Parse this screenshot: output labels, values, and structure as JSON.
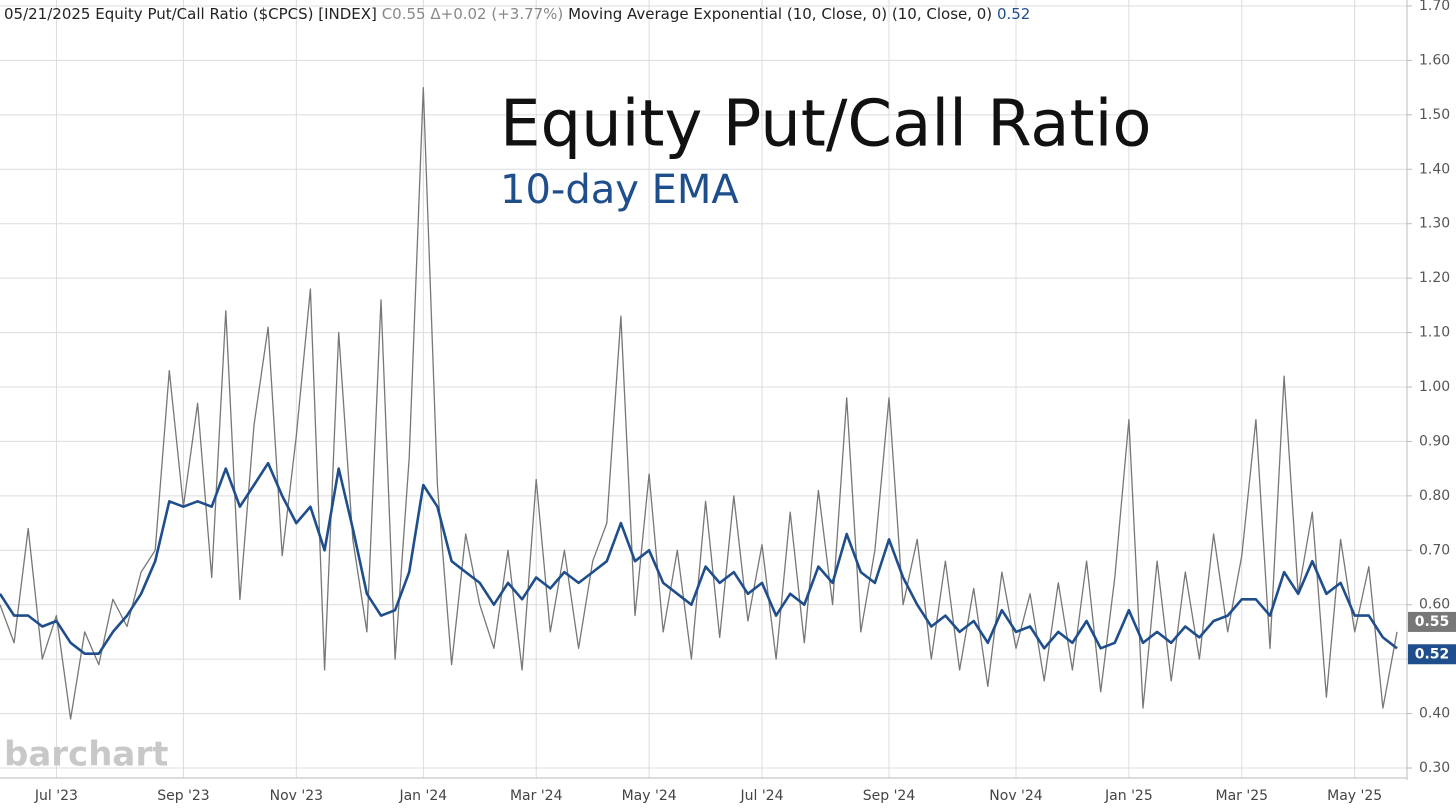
{
  "chart_data": {
    "type": "line",
    "title": "Equity Put/Call Ratio",
    "subtitle": "10-day EMA",
    "header": {
      "date": "05/21/2025",
      "close_prefix": "C",
      "change": "Δ+0.02 (+3.77%)"
    },
    "watermark": "barchart",
    "categories": [
      null,
      null,
      null,
      null,
      "Jul '23",
      null,
      null,
      null,
      null,
      null,
      null,
      null,
      null,
      "Sep '23",
      null,
      null,
      null,
      null,
      null,
      null,
      null,
      "Nov '23",
      null,
      null,
      null,
      null,
      null,
      null,
      null,
      null,
      "Jan '24",
      null,
      null,
      null,
      null,
      null,
      null,
      null,
      "Mar '24",
      null,
      null,
      null,
      null,
      null,
      null,
      null,
      "May '24",
      null,
      null,
      null,
      null,
      null,
      null,
      null,
      "Jul '24",
      null,
      null,
      null,
      null,
      null,
      null,
      null,
      null,
      "Sep '24",
      null,
      null,
      null,
      null,
      null,
      null,
      null,
      null,
      "Nov '24",
      null,
      null,
      null,
      null,
      null,
      null,
      null,
      "Jan '25",
      null,
      null,
      null,
      null,
      null,
      null,
      null,
      "Mar '25",
      null,
      null,
      null,
      null,
      null,
      null,
      null,
      "May '25",
      null,
      null,
      null
    ],
    "series": [
      {
        "name": "Equity Put/Call Ratio ($CPCS) [INDEX]",
        "color": "#777777",
        "values": [
          0.6,
          0.53,
          0.74,
          0.5,
          0.58,
          0.39,
          0.55,
          0.49,
          0.61,
          0.56,
          0.66,
          0.7,
          1.03,
          0.78,
          0.97,
          0.65,
          1.14,
          0.61,
          0.93,
          1.11,
          0.69,
          0.91,
          1.18,
          0.48,
          1.1,
          0.72,
          0.55,
          1.16,
          0.5,
          0.87,
          1.55,
          0.82,
          0.49,
          0.73,
          0.6,
          0.52,
          0.7,
          0.48,
          0.83,
          0.55,
          0.7,
          0.52,
          0.68,
          0.75,
          1.13,
          0.58,
          0.84,
          0.55,
          0.7,
          0.5,
          0.79,
          0.54,
          0.8,
          0.57,
          0.71,
          0.5,
          0.77,
          0.53,
          0.81,
          0.6,
          0.98,
          0.55,
          0.7,
          0.98,
          0.6,
          0.72,
          0.5,
          0.68,
          0.48,
          0.63,
          0.45,
          0.66,
          0.52,
          0.62,
          0.46,
          0.64,
          0.48,
          0.68,
          0.44,
          0.65,
          0.94,
          0.41,
          0.68,
          0.46,
          0.66,
          0.5,
          0.73,
          0.55,
          0.69,
          0.94,
          0.52,
          1.02,
          0.62,
          0.77,
          0.43,
          0.72,
          0.55,
          0.67,
          0.41,
          0.55
        ]
      },
      {
        "name": "Moving Average Exponential (10, Close, 0)  (10, Close, 0)",
        "color": "#1f4e8c",
        "values": [
          0.62,
          0.58,
          0.58,
          0.56,
          0.57,
          0.53,
          0.51,
          0.51,
          0.55,
          0.58,
          0.62,
          0.68,
          0.79,
          0.78,
          0.79,
          0.78,
          0.85,
          0.78,
          0.82,
          0.86,
          0.8,
          0.75,
          0.78,
          0.7,
          0.85,
          0.74,
          0.62,
          0.58,
          0.59,
          0.66,
          0.82,
          0.78,
          0.68,
          0.66,
          0.64,
          0.6,
          0.64,
          0.61,
          0.65,
          0.63,
          0.66,
          0.64,
          0.66,
          0.68,
          0.75,
          0.68,
          0.7,
          0.64,
          0.62,
          0.6,
          0.67,
          0.64,
          0.66,
          0.62,
          0.64,
          0.58,
          0.62,
          0.6,
          0.67,
          0.64,
          0.73,
          0.66,
          0.64,
          0.72,
          0.65,
          0.6,
          0.56,
          0.58,
          0.55,
          0.57,
          0.53,
          0.59,
          0.55,
          0.56,
          0.52,
          0.55,
          0.53,
          0.57,
          0.52,
          0.53,
          0.59,
          0.53,
          0.55,
          0.53,
          0.56,
          0.54,
          0.57,
          0.58,
          0.61,
          0.61,
          0.58,
          0.66,
          0.62,
          0.68,
          0.62,
          0.64,
          0.58,
          0.58,
          0.54,
          0.52
        ]
      }
    ],
    "ylim": [
      0.3,
      1.7
    ],
    "yticks": [
      {
        "value": 0.3,
        "label": "0.30"
      },
      {
        "value": 0.4,
        "label": "0.40"
      },
      {
        "value": 0.5,
        "label": "0.50"
      },
      {
        "value": 0.6,
        "label": "0.60"
      },
      {
        "value": 0.7,
        "label": "0.70"
      },
      {
        "value": 0.8,
        "label": "0.80"
      },
      {
        "value": 0.9,
        "label": "0.90"
      },
      {
        "value": 1.0,
        "label": "1.00"
      },
      {
        "value": 1.1,
        "label": "1.10"
      },
      {
        "value": 1.2,
        "label": "1.20"
      },
      {
        "value": 1.3,
        "label": "1.30"
      },
      {
        "value": 1.4,
        "label": "1.40"
      },
      {
        "value": 1.5,
        "label": "1.50"
      },
      {
        "value": 1.6,
        "label": "1.60"
      },
      {
        "value": 1.7,
        "label": "1.70"
      }
    ],
    "grid": true
  }
}
